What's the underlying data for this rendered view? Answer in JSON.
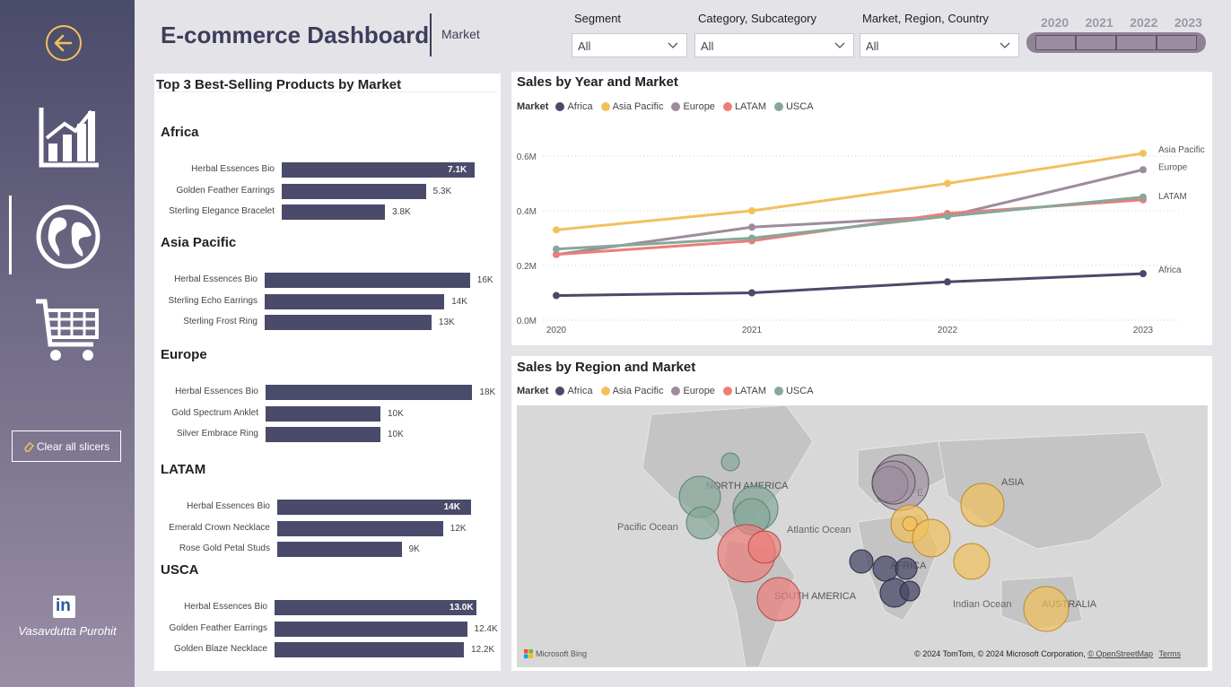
{
  "header": {
    "title": "E-commerce Dashboard",
    "subtitle": "Market"
  },
  "slicers": [
    {
      "label": "Segment",
      "value": "All"
    },
    {
      "label": "Category, Subcategory",
      "value": "All"
    },
    {
      "label": "Market, Region, Country",
      "value": "All"
    }
  ],
  "years": [
    "2020",
    "2021",
    "2022",
    "2023"
  ],
  "sidebar": {
    "clear_label": "Clear all slicers",
    "author": "Vasavdutta Purohit",
    "linkedin_label": "in"
  },
  "colors": {
    "Africa": "#4a4a6a",
    "Asia Pacific": "#f2c15d",
    "Europe": "#9c8c9c",
    "LATAM": "#ec7d7a",
    "USCA": "#86a89a"
  },
  "bar_panel": {
    "title": "Top 3 Best-Selling Products by Market",
    "markets": [
      {
        "name": "Africa",
        "items": [
          {
            "label": "Herbal Essences Bio",
            "value": 7.1,
            "display": "7.1K"
          },
          {
            "label": "Golden Feather Earrings",
            "value": 5.3,
            "display": "5.3K"
          },
          {
            "label": "Sterling Elegance Bracelet",
            "value": 3.8,
            "display": "3.8K"
          }
        ]
      },
      {
        "name": "Asia Pacific",
        "items": [
          {
            "label": "Herbal Essences Bio",
            "value": 16,
            "display": "16K"
          },
          {
            "label": "Sterling Echo Earrings",
            "value": 14,
            "display": "14K"
          },
          {
            "label": "Sterling Frost Ring",
            "value": 13,
            "display": "13K"
          }
        ]
      },
      {
        "name": "Europe",
        "items": [
          {
            "label": "Herbal Essences Bio",
            "value": 18,
            "display": "18K"
          },
          {
            "label": "Gold Spectrum Anklet",
            "value": 10,
            "display": "10K"
          },
          {
            "label": "Silver Embrace Ring",
            "value": 10,
            "display": "10K"
          }
        ]
      },
      {
        "name": "LATAM",
        "items": [
          {
            "label": "Herbal Essences Bio",
            "value": 14,
            "display": "14K"
          },
          {
            "label": "Emerald Crown Necklace",
            "value": 12,
            "display": "12K"
          },
          {
            "label": "Rose Gold Petal Studs",
            "value": 9,
            "display": "9K"
          }
        ]
      },
      {
        "name": "USCA",
        "items": [
          {
            "label": "Herbal Essences Bio",
            "value": 13.0,
            "display": "13.0K"
          },
          {
            "label": "Golden Feather Earrings",
            "value": 12.4,
            "display": "12.4K"
          },
          {
            "label": "Golden Blaze Necklace",
            "value": 12.2,
            "display": "12.2K"
          }
        ]
      }
    ]
  },
  "line_panel": {
    "title": "Sales by Year and Market",
    "legend_title": "Market"
  },
  "map_panel": {
    "title": "Sales by Region and Market",
    "legend_title": "Market",
    "labels": {
      "na": "NORTH AMERICA",
      "pacific": "Pacific Ocean",
      "atlantic": "Atlantic Ocean",
      "europe": "E",
      "asia": "ASIA",
      "africa": "AFRICA",
      "sa": "SOUTH AMERICA",
      "indian": "Indian Ocean",
      "australia": "AUSTRALIA"
    },
    "credit": "© 2024 TomTom, © 2024 Microsoft Corporation,",
    "osm": "© OpenStreetMap",
    "terms": "Terms",
    "bing": "Microsoft Bing"
  },
  "chart_data": [
    {
      "type": "line",
      "title": "Sales by Year and Market",
      "x": [
        "2020",
        "2021",
        "2022",
        "2023"
      ],
      "y_ticks": [
        "0.0M",
        "0.2M",
        "0.4M",
        "0.6M"
      ],
      "ylim": [
        0,
        0.6
      ],
      "grid": true,
      "legend": "top-left",
      "series": [
        {
          "name": "Africa",
          "values": [
            0.09,
            0.1,
            0.14,
            0.17
          ]
        },
        {
          "name": "Asia Pacific",
          "values": [
            0.33,
            0.4,
            0.5,
            0.61
          ]
        },
        {
          "name": "Europe",
          "values": [
            0.24,
            0.34,
            0.38,
            0.55
          ]
        },
        {
          "name": "LATAM",
          "values": [
            0.24,
            0.29,
            0.39,
            0.44
          ]
        },
        {
          "name": "USCA",
          "values": [
            0.26,
            0.3,
            0.38,
            0.45
          ]
        }
      ],
      "end_labels": [
        "Asia Pacific",
        "Europe",
        "LATAM",
        "Africa"
      ]
    }
  ]
}
